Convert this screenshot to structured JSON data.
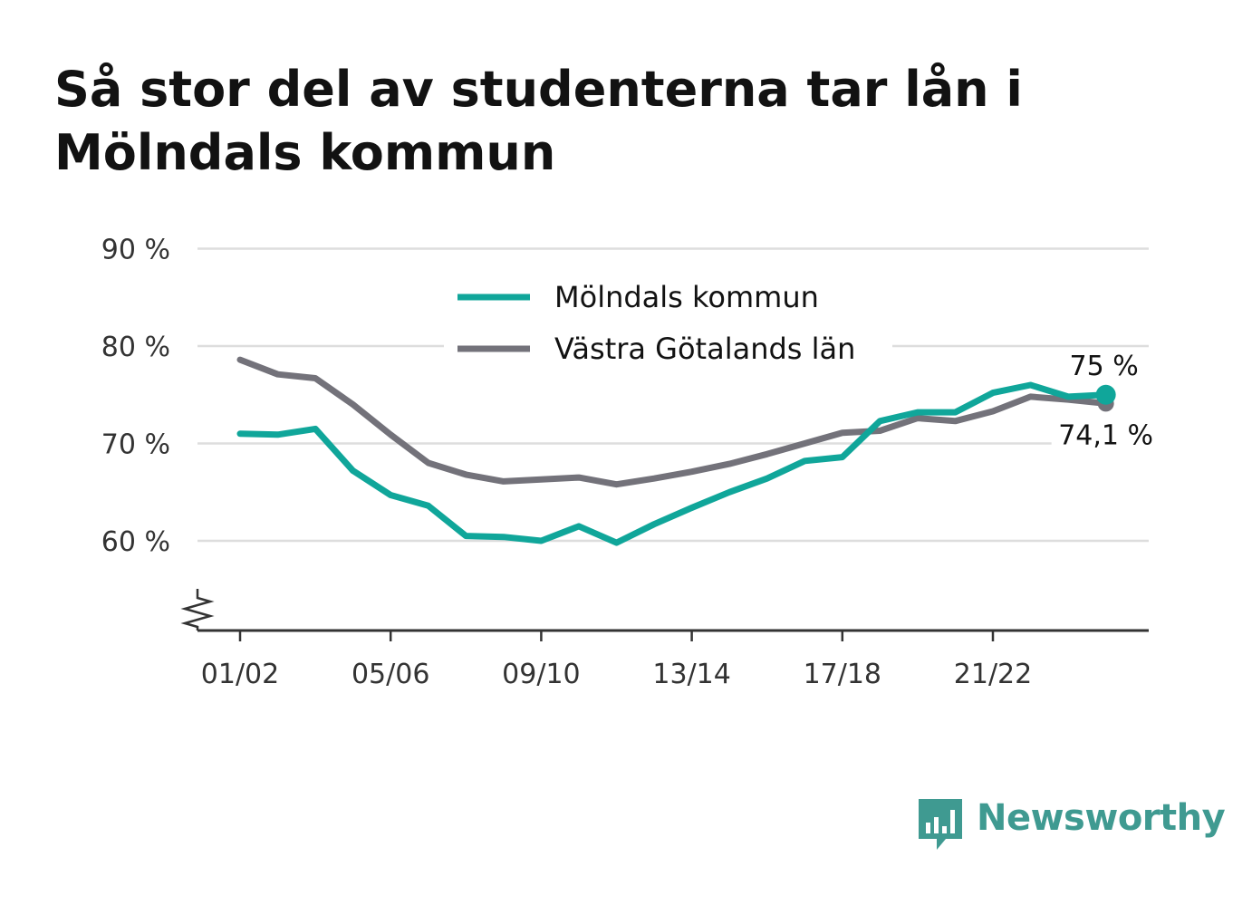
{
  "title": "Så stor del av studenterna tar lån i Mölndals kommun",
  "colors": {
    "molndal": "#10a69a",
    "vgl": "#73727a",
    "grid": "#dddddd",
    "axis": "#333333"
  },
  "brand": {
    "name": "Newsworthy",
    "icon": "newsworthy-chart-icon"
  },
  "chart_data": {
    "type": "line",
    "x": [
      "01/02",
      "02/03",
      "03/04",
      "04/05",
      "05/06",
      "06/07",
      "07/08",
      "08/09",
      "09/10",
      "10/11",
      "11/12",
      "12/13",
      "13/14",
      "14/15",
      "15/16",
      "16/17",
      "17/18",
      "18/19",
      "19/20",
      "20/21",
      "21/22",
      "22/23",
      "23/24",
      "24/25"
    ],
    "x_tick_labels": [
      "01/02",
      "05/06",
      "09/10",
      "13/14",
      "17/18",
      "21/22"
    ],
    "y_tick_labels": [
      "60 %",
      "70 %",
      "80 %",
      "90 %"
    ],
    "y_ticks": [
      60,
      70,
      80,
      90
    ],
    "ylim": [
      51,
      90
    ],
    "y_axis_broken": true,
    "grid": true,
    "legend_position": "top-center",
    "series": [
      {
        "name": "Mölndals kommun",
        "color": "#10a69a",
        "values": [
          71.0,
          70.9,
          71.5,
          67.2,
          64.7,
          63.6,
          60.5,
          60.4,
          60.0,
          61.5,
          59.8,
          61.7,
          63.4,
          65.0,
          66.4,
          68.2,
          68.6,
          72.3,
          73.2,
          73.2,
          75.2,
          76.0,
          74.8,
          75.0
        ],
        "end_label": "75 %"
      },
      {
        "name": "Västra Götalands län",
        "color": "#73727a",
        "values": [
          78.6,
          77.1,
          76.7,
          74.0,
          70.9,
          68.0,
          66.8,
          66.1,
          66.3,
          66.5,
          65.8,
          66.4,
          67.1,
          67.9,
          68.9,
          70.0,
          71.1,
          71.3,
          72.6,
          72.3,
          73.3,
          74.8,
          74.5,
          74.1
        ],
        "end_label": "74,1 %"
      }
    ]
  }
}
